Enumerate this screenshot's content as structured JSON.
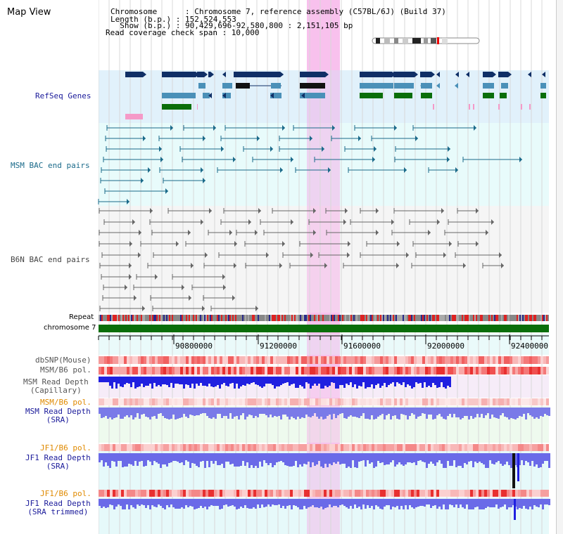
{
  "header": {
    "title": "Map View",
    "chromosome_line": "Chromosome      : Chromosome 7, reference assembly (C57BL/6J) (Build 37)",
    "length_line": "Length (b.p.) : 152,524,553",
    "show_line": "  Show (b.p.) : 90,429,696-92,580,800 : 2,151,105 bp",
    "coverage_line": "Read coverage check span : 10,000"
  },
  "tracks": {
    "refseq": "RefSeq Genes",
    "msm_bac": "MSM BAC end pairs",
    "b6n_bac": "B6N BAC end pairs",
    "repeat": "Repeat",
    "chromosome": "chromosome 7",
    "dbsnp": "dbSNP(Mouse)",
    "msm_b6_pol": "MSM/B6 pol.",
    "msm_depth_cap_1": "MSM Read Depth",
    "msm_depth_cap_2": "(Capillary)",
    "msm_b6_pol2": "MSM/B6 pol.",
    "msm_depth_sra_1": "MSM Read Depth",
    "msm_depth_sra_2": "(SRA)",
    "jf1_b6_pol": "JF1/B6 pol.",
    "jf1_depth_sra_1": "JF1 Read Depth",
    "jf1_depth_sra_2": "(SRA)",
    "jf1_b6_pol2": "JF1/B6 pol.",
    "jf1_depth_trim_1": "JF1 Read Depth",
    "jf1_depth_trim_2": "(SRA trimmed)"
  },
  "axis": {
    "ticks": [
      "90800000",
      "91200000",
      "91600000",
      "92000000",
      "92400000"
    ]
  },
  "colors": {
    "refseq_bg": "#dff0fa",
    "msm_bg": "#e6fbfb",
    "gene_dark": "#0f2f66",
    "gene_mid": "#4a90b8",
    "gene_green": "#0a6e0a",
    "gene_pink": "#f59ac8",
    "highlight": "#f6c6ee",
    "label_blue": "#1a1a9a",
    "label_teal": "#1a6a7a",
    "label_orange": "#e08a00",
    "chrom_green": "#0a6e0a"
  }
}
